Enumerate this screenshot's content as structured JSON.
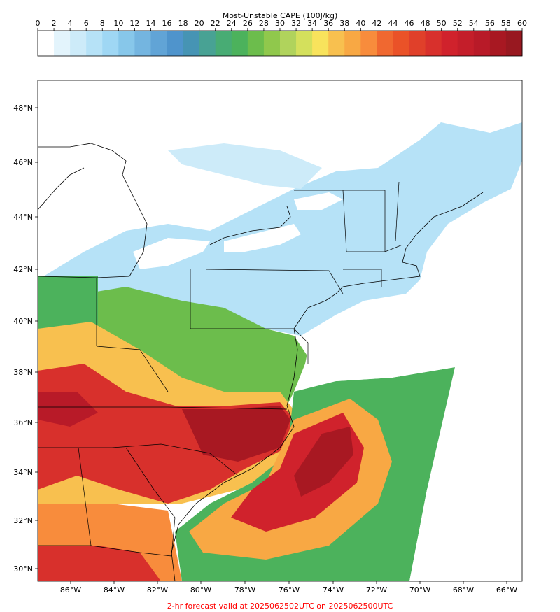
{
  "colorbar": {
    "title": "Most-Unstable CAPE (100J/kg)",
    "ticks": [
      "0",
      "2",
      "4",
      "6",
      "8",
      "10",
      "12",
      "14",
      "16",
      "18",
      "20",
      "22",
      "24",
      "26",
      "28",
      "30",
      "32",
      "34",
      "36",
      "38",
      "40",
      "42",
      "44",
      "46",
      "48",
      "50",
      "52",
      "54",
      "56",
      "58",
      "60"
    ],
    "colors": [
      "#ffffff",
      "#e3f4fc",
      "#cdebf9",
      "#b6e2f7",
      "#9fd7f4",
      "#87c7ea",
      "#74b5e0",
      "#61a4d6",
      "#4f94cc",
      "#4694b4",
      "#48a294",
      "#48ac74",
      "#4cb25c",
      "#6cbd4c",
      "#90c84c",
      "#b0d35c",
      "#d4e05c",
      "#f8e35c",
      "#f8c04f",
      "#f8a844",
      "#f88c3c",
      "#f06830",
      "#ea5228",
      "#e0402a",
      "#d8302c",
      "#d0222c",
      "#c41e2a",
      "#b81a28",
      "#a81822",
      "#981820"
    ]
  },
  "map": {
    "lat_labels": [
      "30°N",
      "32°N",
      "34°N",
      "36°N",
      "38°N",
      "40°N",
      "42°N",
      "44°N",
      "46°N",
      "48°N"
    ],
    "lon_labels": [
      "86°W",
      "84°W",
      "82°W",
      "80°W",
      "78°W",
      "76°W",
      "74°W",
      "72°W",
      "70°W",
      "68°W",
      "66°W"
    ]
  },
  "caption": "2-hr forecast valid at 2025062502UTC on 2025062500UTC",
  "field_colors": {
    "land_dry": "#ffffff",
    "low": "#cdebf9",
    "mid": "#4cb25c",
    "high": "#f8e35c",
    "very_high": "#ea5228",
    "extreme": "#a81822"
  }
}
